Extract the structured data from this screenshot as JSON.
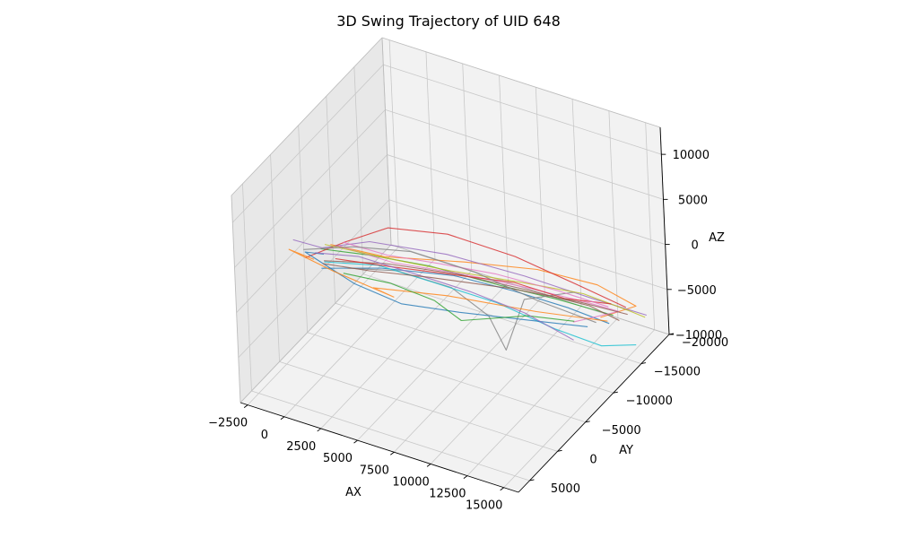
{
  "chart_data": {
    "type": "line",
    "projection": "3d",
    "title": "3D Swing Trajectory of UID 648",
    "xlabel": "AX",
    "ylabel": "AY",
    "zlabel": "AZ",
    "xlim": [
      -3000,
      16000
    ],
    "ylim": [
      -20000,
      7000
    ],
    "zlim": [
      -10000,
      13000
    ],
    "xticks": [
      -2500,
      0,
      2500,
      5000,
      7500,
      10000,
      12500,
      15000
    ],
    "xtick_labels": [
      "−2500",
      "0",
      "2500",
      "5000",
      "7500",
      "10000",
      "12500",
      "15000"
    ],
    "yticks": [
      -20000,
      -15000,
      -10000,
      -5000,
      0,
      5000
    ],
    "ytick_labels": [
      "−20000",
      "−15000",
      "−10000",
      "−5000",
      "0",
      "5000"
    ],
    "zticks": [
      -10000,
      -5000,
      0,
      5000,
      10000
    ],
    "ztick_labels": [
      "−10000",
      "−5000",
      "0",
      "5000",
      "10000"
    ],
    "grid": true,
    "pane_color": "#f2f2f2",
    "series_colors": [
      "#1f77b4",
      "#ff7f0e",
      "#2ca02c",
      "#d62728",
      "#9467bd",
      "#8c564b",
      "#e377c2",
      "#7f7f7f",
      "#bcbd22",
      "#17becf"
    ],
    "series": [
      {
        "points": [
          [
            1200,
            2500,
            4200
          ],
          [
            3500,
            -2000,
            2500
          ],
          [
            6500,
            -7000,
            0
          ],
          [
            9000,
            -11000,
            -3000
          ],
          [
            11500,
            -14000,
            -5500
          ],
          [
            13500,
            -16000,
            -7500
          ]
        ]
      },
      {
        "points": [
          [
            2500,
            4000,
            8500
          ],
          [
            5000,
            1000,
            6500
          ],
          [
            8500,
            -4000,
            4500
          ],
          [
            11500,
            -9000,
            2000
          ],
          [
            14000,
            -13000,
            -1000
          ],
          [
            15200,
            -16500,
            -5000
          ],
          [
            12500,
            -17000,
            -8000
          ]
        ]
      },
      {
        "points": [
          [
            800,
            1500,
            5500
          ],
          [
            3000,
            -1500,
            4000
          ],
          [
            5500,
            -5500,
            1500
          ],
          [
            8500,
            -10000,
            -2000
          ],
          [
            11000,
            -13500,
            -4500
          ],
          [
            14000,
            -15500,
            -6000
          ]
        ]
      },
      {
        "points": [
          [
            -500,
            1000,
            3500
          ],
          [
            1500,
            -1000,
            5000
          ],
          [
            3500,
            -3500,
            6000
          ],
          [
            6000,
            -7500,
            4000
          ],
          [
            9000,
            -11500,
            500
          ],
          [
            12000,
            -14500,
            -3000
          ],
          [
            14500,
            -16500,
            -5500
          ]
        ]
      },
      {
        "points": [
          [
            -2500,
            -2000,
            2500
          ],
          [
            500,
            500,
            4800
          ],
          [
            3000,
            -1500,
            5500
          ],
          [
            6500,
            -6000,
            3000
          ],
          [
            10000,
            -10500,
            -500
          ],
          [
            13000,
            -14500,
            -4000
          ],
          [
            15500,
            -17500,
            -6500
          ]
        ]
      },
      {
        "points": [
          [
            1800,
            3500,
            6000
          ],
          [
            4500,
            -500,
            4500
          ],
          [
            7500,
            -5000,
            2000
          ],
          [
            10500,
            -10000,
            -1500
          ],
          [
            13000,
            -14000,
            -4500
          ],
          [
            14200,
            -16000,
            -6800
          ]
        ]
      },
      {
        "points": [
          [
            3500,
            5000,
            9500
          ],
          [
            6000,
            2000,
            7000
          ],
          [
            9000,
            -3000,
            4000
          ],
          [
            11500,
            -8000,
            500
          ],
          [
            13500,
            -12000,
            -2500
          ],
          [
            14800,
            -14500,
            -4500
          ],
          [
            12000,
            -13500,
            -6500
          ]
        ]
      },
      {
        "points": [
          [
            2000,
            0,
            3000
          ],
          [
            4000,
            -3500,
            1500
          ],
          [
            6500,
            -6500,
            -1000
          ],
          [
            8000,
            -9000,
            -5000
          ],
          [
            8500,
            -10500,
            -9500
          ],
          [
            9500,
            -11500,
            -4000
          ],
          [
            12000,
            -14000,
            -3500
          ]
        ]
      },
      {
        "points": [
          [
            1500,
            2500,
            7000
          ],
          [
            4500,
            0,
            5500
          ],
          [
            7500,
            -4000,
            3000
          ],
          [
            10500,
            -9000,
            0
          ],
          [
            13000,
            -13000,
            -2500
          ],
          [
            15500,
            -15000,
            -4500
          ],
          [
            16000,
            -16000,
            -5500
          ]
        ]
      },
      {
        "points": [
          [
            0,
            -1000,
            2000
          ],
          [
            2500,
            -4000,
            1000
          ],
          [
            5000,
            -7000,
            -1500
          ],
          [
            8000,
            -10500,
            -4500
          ],
          [
            11000,
            -13000,
            -7500
          ],
          [
            13500,
            -14500,
            -9000
          ],
          [
            15500,
            -15500,
            -8500
          ]
        ]
      },
      {
        "points": [
          [
            1000,
            1500,
            5000
          ],
          [
            -1500,
            -1500,
            2000
          ],
          [
            1000,
            -3500,
            -1500
          ],
          [
            4000,
            -4000,
            -2500
          ],
          [
            7000,
            -6500,
            -3500
          ],
          [
            10000,
            -10000,
            -5000
          ],
          [
            13000,
            -13500,
            -6500
          ]
        ]
      },
      {
        "points": [
          [
            500,
            2000,
            4500
          ],
          [
            -2000,
            0,
            3000
          ],
          [
            0,
            -2500,
            0
          ],
          [
            3500,
            -4000,
            -2000
          ],
          [
            1500,
            -5500,
            -3000
          ],
          [
            6000,
            -7000,
            -2500
          ],
          [
            10500,
            -11000,
            -4500
          ],
          [
            14000,
            -14500,
            -6000
          ]
        ]
      },
      {
        "points": [
          [
            2500,
            2000,
            4000
          ],
          [
            4500,
            -1000,
            2000
          ],
          [
            6500,
            -3500,
            -500
          ],
          [
            7500,
            -5500,
            -3500
          ],
          [
            10500,
            -9500,
            -4000
          ],
          [
            12500,
            -12500,
            -5500
          ]
        ]
      },
      {
        "points": [
          [
            3000,
            4500,
            7500
          ],
          [
            5500,
            1500,
            6000
          ],
          [
            8000,
            -3000,
            3500
          ],
          [
            10500,
            -7500,
            1000
          ],
          [
            12500,
            -11000,
            -2000
          ],
          [
            14500,
            -14000,
            -3500
          ]
        ]
      },
      {
        "points": [
          [
            0,
            500,
            4000
          ],
          [
            2000,
            -2000,
            3000
          ],
          [
            4500,
            -5000,
            500
          ],
          [
            7000,
            -8500,
            -2500
          ],
          [
            9500,
            -11500,
            -5500
          ],
          [
            12000,
            -13500,
            -8500
          ]
        ]
      },
      {
        "points": [
          [
            1500,
            3000,
            5200
          ],
          [
            3500,
            0,
            3500
          ],
          [
            6000,
            -4000,
            1500
          ],
          [
            9500,
            -9500,
            -1500
          ],
          [
            12500,
            -13500,
            -4000
          ],
          [
            14800,
            -16000,
            -5800
          ]
        ]
      },
      {
        "points": [
          [
            4000,
            5500,
            10500
          ],
          [
            6000,
            3000,
            8500
          ],
          [
            8000,
            -1000,
            6000
          ],
          [
            10000,
            -5500,
            3000
          ],
          [
            12500,
            -10000,
            -500
          ],
          [
            14500,
            -13500,
            -3500
          ]
        ]
      },
      {
        "points": [
          [
            -1000,
            0,
            3500
          ],
          [
            1500,
            -2500,
            3500
          ],
          [
            4000,
            -6000,
            2000
          ],
          [
            7000,
            -9500,
            -1000
          ],
          [
            10000,
            -12500,
            -4500
          ],
          [
            13000,
            -15000,
            -7000
          ]
        ]
      }
    ]
  }
}
